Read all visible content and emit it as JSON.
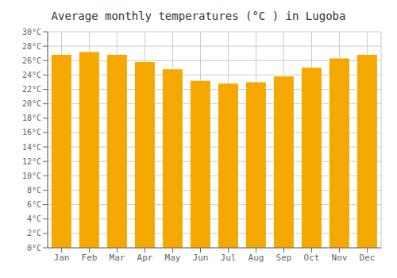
{
  "chart_data": {
    "type": "bar",
    "title": "Average monthly temperatures (°C ) in Lugoba",
    "categories": [
      "Jan",
      "Feb",
      "Mar",
      "Apr",
      "May",
      "Jun",
      "Jul",
      "Aug",
      "Sep",
      "Oct",
      "Nov",
      "Dec"
    ],
    "values": [
      26.8,
      27.2,
      26.8,
      25.8,
      24.8,
      23.2,
      22.8,
      23.0,
      23.8,
      25.0,
      26.3,
      26.8
    ],
    "color": "#F5A800",
    "ylim": [
      0,
      30
    ],
    "yticks": [
      {
        "value": 0,
        "label": "0°C"
      },
      {
        "value": 2,
        "label": "2°C"
      },
      {
        "value": 4,
        "label": "4°C"
      },
      {
        "value": 6,
        "label": "6°C"
      },
      {
        "value": 8,
        "label": "8°C"
      },
      {
        "value": 10,
        "label": "10°C"
      },
      {
        "value": 12,
        "label": "12°C"
      },
      {
        "value": 14,
        "label": "14°C"
      },
      {
        "value": 16,
        "label": "16°C"
      },
      {
        "value": 18,
        "label": "18°C"
      },
      {
        "value": 20,
        "label": "20°C"
      },
      {
        "value": 22,
        "label": "22°C"
      },
      {
        "value": 24,
        "label": "24°C"
      },
      {
        "value": 26,
        "label": "26°C"
      },
      {
        "value": 28,
        "label": "28°C"
      },
      {
        "value": 30,
        "label": "30°C"
      }
    ],
    "grid": true
  }
}
